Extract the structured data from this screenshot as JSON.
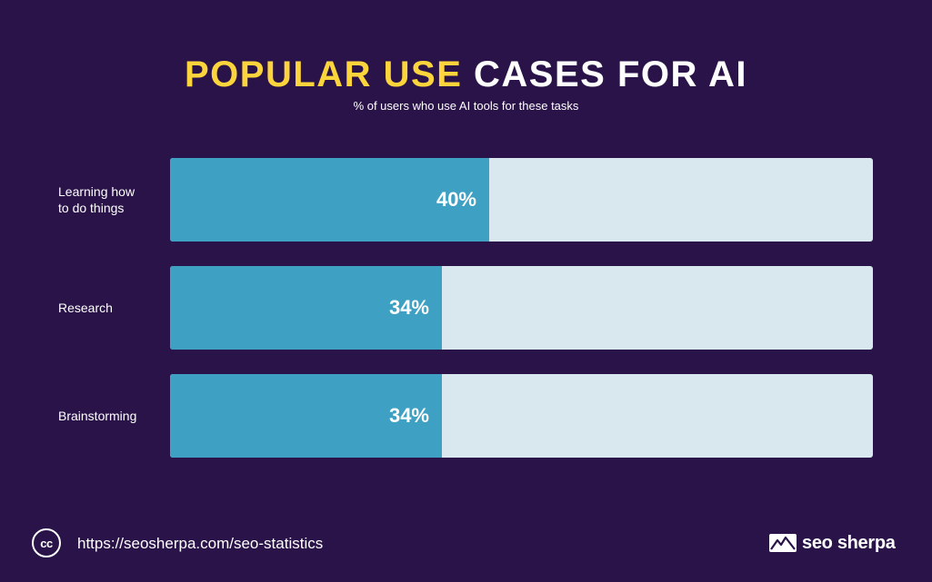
{
  "header": {
    "title_highlight": "POPULAR USE",
    "title_rest": " CASES FOR AI",
    "subtitle": "% of users who use AI tools for these tasks"
  },
  "chart_data": {
    "type": "bar",
    "orientation": "horizontal",
    "title": "POPULAR USE CASES FOR AI",
    "subtitle": "% of users who use AI tools for these tasks",
    "categories": [
      "Learning how\nto do things",
      "Research",
      "Brainstorming"
    ],
    "values": [
      40,
      34,
      34
    ],
    "value_labels": [
      "40%",
      "34%",
      "34%"
    ],
    "xlim": [
      0,
      88
    ],
    "unit": "%",
    "colors": {
      "fill": "#3ea1c3",
      "track": "#d9e7ee"
    }
  },
  "footer": {
    "license_icon": "cc-icon",
    "license_text": "cc",
    "url": "https://seosherpa.com/seo-statistics",
    "brand": "seo sherpa",
    "brand_icon": "mountain-logo-icon"
  },
  "colors": {
    "background": "#2a1349",
    "accent": "#fcd43b",
    "text": "#ffffff"
  }
}
